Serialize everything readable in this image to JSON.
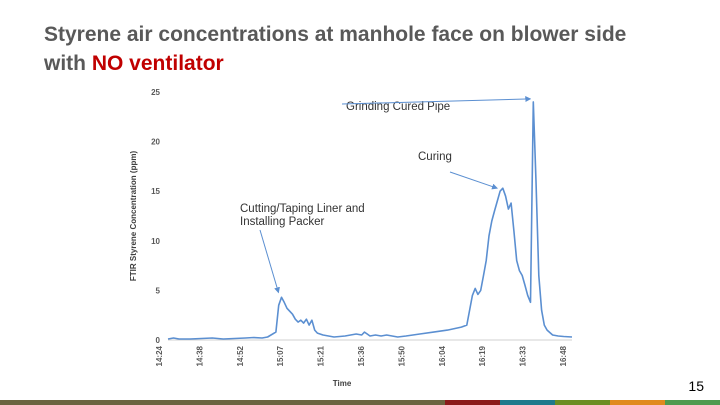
{
  "slide": {
    "title_prefix": "Styrene air concentrations at manhole face on blower side with",
    "title_accent": "NO ventilator",
    "page_number": "15"
  },
  "colors": {
    "title": "#595959",
    "accent": "#c00000",
    "series": "#5b8fd1",
    "footer": [
      "#6b6440",
      "#8b1a1a",
      "#1f7a8c",
      "#6b8e23",
      "#e08a1e",
      "#4f9a4f"
    ]
  },
  "chart_data": {
    "type": "line",
    "xlabel": "Time",
    "ylabel": "FTIR Styrene Concentration (ppm)",
    "ylim": [
      0,
      25
    ],
    "yticks": [
      0,
      5,
      10,
      15,
      20,
      25
    ],
    "xlim": [
      864,
      1010
    ],
    "xtick_labels": [
      "14:24",
      "14:38",
      "14:52",
      "15:07",
      "15:21",
      "15:36",
      "15:50",
      "16:04",
      "16:19",
      "16:33",
      "16:48"
    ],
    "grid": false,
    "series": [
      {
        "points": [
          [
            864,
            0.1
          ],
          [
            866,
            0.2
          ],
          [
            868,
            0.1
          ],
          [
            872,
            0.1
          ],
          [
            876,
            0.15
          ],
          [
            880,
            0.2
          ],
          [
            884,
            0.1
          ],
          [
            888,
            0.15
          ],
          [
            892,
            0.2
          ],
          [
            895,
            0.25
          ],
          [
            898,
            0.2
          ],
          [
            900,
            0.3
          ],
          [
            903,
            0.8
          ],
          [
            904,
            3.5
          ],
          [
            905,
            4.3
          ],
          [
            906,
            3.8
          ],
          [
            907,
            3.2
          ],
          [
            909,
            2.6
          ],
          [
            910,
            2.1
          ],
          [
            911,
            1.8
          ],
          [
            912,
            2.0
          ],
          [
            913,
            1.7
          ],
          [
            914,
            2.1
          ],
          [
            915,
            1.5
          ],
          [
            916,
            2.0
          ],
          [
            917,
            1.0
          ],
          [
            918,
            0.7
          ],
          [
            920,
            0.5
          ],
          [
            922,
            0.4
          ],
          [
            924,
            0.3
          ],
          [
            926,
            0.35
          ],
          [
            928,
            0.4
          ],
          [
            930,
            0.5
          ],
          [
            932,
            0.6
          ],
          [
            934,
            0.5
          ],
          [
            935,
            0.8
          ],
          [
            936,
            0.6
          ],
          [
            937,
            0.4
          ],
          [
            939,
            0.5
          ],
          [
            941,
            0.4
          ],
          [
            943,
            0.5
          ],
          [
            945,
            0.4
          ],
          [
            947,
            0.3
          ],
          [
            950,
            0.4
          ],
          [
            955,
            0.6
          ],
          [
            960,
            0.8
          ],
          [
            965,
            1.0
          ],
          [
            970,
            1.3
          ],
          [
            972,
            1.5
          ],
          [
            974,
            4.5
          ],
          [
            975,
            5.2
          ],
          [
            976,
            4.6
          ],
          [
            977,
            5.0
          ],
          [
            978,
            6.5
          ],
          [
            979,
            8.0
          ],
          [
            980,
            10.5
          ],
          [
            981,
            12.0
          ],
          [
            982,
            13.0
          ],
          [
            983,
            14.0
          ],
          [
            984,
            15.0
          ],
          [
            985,
            15.3
          ],
          [
            986,
            14.5
          ],
          [
            987,
            13.2
          ],
          [
            988,
            13.8
          ],
          [
            989,
            11.0
          ],
          [
            990,
            8.0
          ],
          [
            991,
            7.0
          ],
          [
            992,
            6.5
          ],
          [
            993,
            5.5
          ],
          [
            994,
            4.5
          ],
          [
            995,
            3.8
          ],
          [
            996,
            24.0
          ],
          [
            997,
            16.0
          ],
          [
            998,
            6.5
          ],
          [
            999,
            3.0
          ],
          [
            1000,
            1.5
          ],
          [
            1001,
            1.0
          ],
          [
            1003,
            0.5
          ],
          [
            1005,
            0.4
          ],
          [
            1007,
            0.35
          ],
          [
            1010,
            0.3
          ]
        ]
      }
    ],
    "annotations": [
      {
        "lines": [
          "Grinding Cured Pipe"
        ],
        "target": [
          996,
          24.0
        ]
      },
      {
        "lines": [
          "Curing"
        ],
        "target": [
          984,
          15.0
        ]
      },
      {
        "lines": [
          "Cutting/Taping Liner and",
          "Installing Packer"
        ],
        "target": [
          905,
          4.5
        ]
      }
    ]
  }
}
